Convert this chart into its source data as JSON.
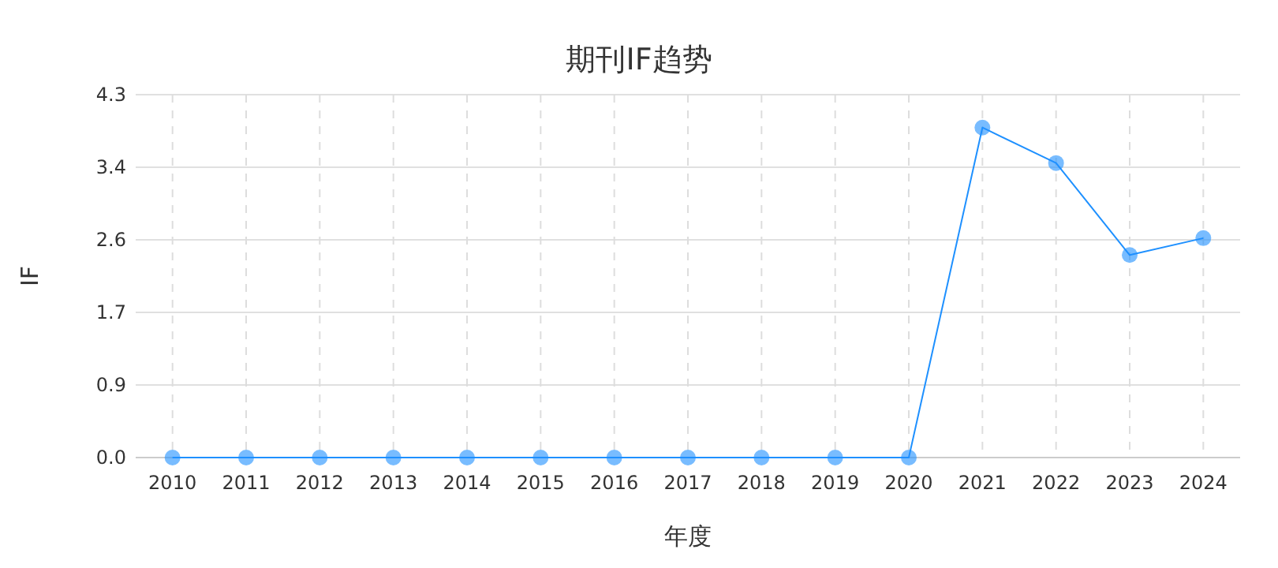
{
  "chart_data": {
    "type": "line",
    "title": "期刊IF趋势",
    "xlabel": "年度",
    "ylabel": "IF",
    "categories": [
      "2010",
      "2011",
      "2012",
      "2013",
      "2014",
      "2015",
      "2016",
      "2017",
      "2018",
      "2019",
      "2020",
      "2021",
      "2022",
      "2023",
      "2024"
    ],
    "series": [
      {
        "color": "#1e90ff",
        "values": [
          0,
          0,
          0,
          0,
          0,
          0,
          0,
          0,
          0,
          0,
          0,
          3.91,
          3.49,
          2.4,
          2.6
        ]
      }
    ],
    "marker": "circle",
    "line_style": "solid",
    "grid": true,
    "ylim": [
      0,
      4.3
    ],
    "yticks": [
      {
        "value": 0,
        "label": "0.0"
      },
      {
        "value": 0.86,
        "label": "0.9"
      },
      {
        "value": 1.72,
        "label": "1.7"
      },
      {
        "value": 2.58,
        "label": "2.6"
      },
      {
        "value": 3.44,
        "label": "3.4"
      },
      {
        "value": 4.3,
        "label": "4.3"
      }
    ]
  }
}
